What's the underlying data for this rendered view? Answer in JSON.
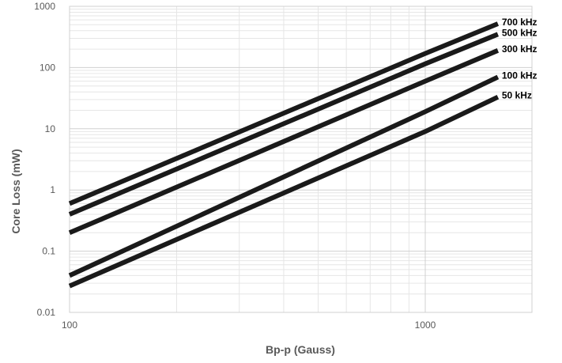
{
  "chart_data": {
    "type": "line",
    "title": "",
    "xlabel": "Bp-p (Gauss)",
    "ylabel": "Core Loss (mW)",
    "x_scale": "log",
    "y_scale": "log",
    "xlim": [
      100,
      2000
    ],
    "ylim": [
      0.01,
      1000
    ],
    "x_ticks": [
      "100",
      "1000"
    ],
    "y_ticks": [
      "0.01",
      "0.1",
      "1",
      "10",
      "100",
      "1000"
    ],
    "grid": true,
    "legend": "labels at line ends (right)",
    "line_color": "#1a1a1a",
    "series": [
      {
        "name": "700 kHz",
        "x": [
          100,
          1000,
          1600
        ],
        "y": [
          0.6,
          170,
          520
        ]
      },
      {
        "name": "500 kHz",
        "x": [
          100,
          1000,
          1600
        ],
        "y": [
          0.4,
          115,
          350
        ]
      },
      {
        "name": "300 kHz",
        "x": [
          100,
          1000,
          1600
        ],
        "y": [
          0.2,
          60,
          190
        ]
      },
      {
        "name": "100 kHz",
        "x": [
          100,
          1000,
          1600
        ],
        "y": [
          0.04,
          19,
          70
        ]
      },
      {
        "name": "50 kHz",
        "x": [
          100,
          1000,
          1600
        ],
        "y": [
          0.027,
          9,
          33
        ]
      }
    ]
  }
}
